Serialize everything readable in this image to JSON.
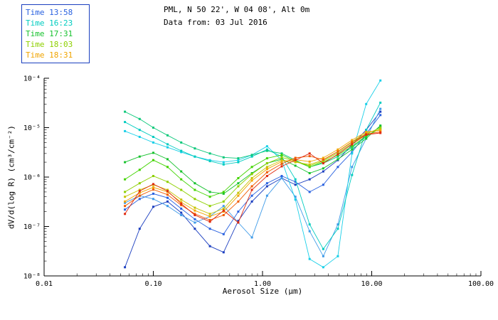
{
  "header": {
    "line1": "PML, N 50 22', W 04 08', Alt 0m",
    "line2": "Data from: 03 Jul 2016"
  },
  "legend": {
    "position": "top-left",
    "border_color": "#1a3fbf",
    "items": [
      {
        "label": "Time 13:58",
        "color": "#2a62e0"
      },
      {
        "label": "Time 16:23",
        "color": "#00ccc0"
      },
      {
        "label": "Time 17:31",
        "color": "#17c22e"
      },
      {
        "label": "Time 18:03",
        "color": "#8ed000"
      },
      {
        "label": "Time 18:31",
        "color": "#f0a400"
      }
    ]
  },
  "chart_data": {
    "type": "line",
    "title": "",
    "xlabel": "Aerosol Size (μm)",
    "ylabel": "dV/d(log R) (cm³/cm⁻²)",
    "x_scale": "log",
    "y_scale": "log",
    "grid": false,
    "xlim": [
      0.01,
      100
    ],
    "ylim": [
      1e-08,
      0.0001
    ],
    "x_ticks": [
      0.01,
      0.1,
      1,
      10,
      100
    ],
    "x_tick_labels": [
      "0.01",
      "0.10",
      "1.00",
      "10.00",
      "100.00"
    ],
    "y_ticks": [
      1e-08,
      1e-07,
      1e-06,
      1e-05,
      0.0001
    ],
    "y_tick_labels": [
      "10⁻⁸",
      "10⁻⁷",
      "10⁻⁶",
      "10⁻⁵",
      "10⁻⁴"
    ],
    "marker": "square",
    "x": [
      0.055,
      0.075,
      0.1,
      0.135,
      0.18,
      0.24,
      0.33,
      0.44,
      0.6,
      0.8,
      1.1,
      1.5,
      2.0,
      2.7,
      3.6,
      4.9,
      6.6,
      8.9,
      12.0
    ],
    "series": [
      {
        "name": "series-01",
        "color": "#1c3fc0",
        "values": [
          1.5e-08,
          9e-08,
          2.5e-07,
          3.2e-07,
          1.9e-07,
          9e-08,
          4e-08,
          3e-08,
          1.3e-07,
          3.2e-07,
          6.5e-07,
          9.5e-07,
          7e-07,
          9e-07,
          1.3e-06,
          2.2e-06,
          4.5e-06,
          9e-06,
          2.1e-05
        ]
      },
      {
        "name": "series-02",
        "color": "#2a62e0",
        "values": [
          2.2e-07,
          3.6e-07,
          4.6e-07,
          3.8e-07,
          2.3e-07,
          1.4e-07,
          9e-08,
          7e-08,
          2e-07,
          4.2e-07,
          7.5e-07,
          1.05e-06,
          8e-07,
          5e-07,
          7e-07,
          1.6e-06,
          3.2e-06,
          7.5e-06,
          1.8e-05
        ]
      },
      {
        "name": "series-03",
        "color": "#3f9be8",
        "values": [
          3e-07,
          4.2e-07,
          3.6e-07,
          2.6e-07,
          1.7e-07,
          1.2e-07,
          1.6e-07,
          2.6e-07,
          1.2e-07,
          6e-08,
          4.2e-07,
          9.5e-07,
          4e-07,
          8e-08,
          2.5e-08,
          1.1e-07,
          1.6e-06,
          6e-06,
          2.4e-05
        ]
      },
      {
        "name": "series-04",
        "color": "#18cfe8",
        "values": [
          8.5e-06,
          6.5e-06,
          5e-06,
          4e-06,
          3.2e-06,
          2.6e-06,
          2.2e-06,
          2e-06,
          2.2e-06,
          2.8e-06,
          4.2e-06,
          2.2e-06,
          3.5e-07,
          2.2e-08,
          1.5e-08,
          2.5e-08,
          3e-06,
          3e-05,
          9e-05
        ]
      },
      {
        "name": "series-05",
        "color": "#00ccc0",
        "values": [
          1.3e-05,
          9e-06,
          6.5e-06,
          4.6e-06,
          3.4e-06,
          2.6e-06,
          2.1e-06,
          1.8e-06,
          2e-06,
          2.6e-06,
          3.6e-06,
          2.6e-06,
          9e-07,
          1.1e-07,
          3.5e-08,
          9e-08,
          1.1e-06,
          9e-06,
          3.2e-05
        ]
      },
      {
        "name": "series-06",
        "color": "#0cc87a",
        "values": [
          2.1e-05,
          1.5e-05,
          1e-05,
          7e-06,
          5e-06,
          3.8e-06,
          3e-06,
          2.5e-06,
          2.4e-06,
          2.8e-06,
          3.4e-06,
          3e-06,
          2.2e-06,
          1.6e-06,
          1.9e-06,
          2.6e-06,
          4e-06,
          6.5e-06,
          1.05e-05
        ]
      },
      {
        "name": "series-07",
        "color": "#17c22e",
        "values": [
          2e-06,
          2.6e-06,
          3.1e-06,
          2.3e-06,
          1.3e-06,
          7.5e-07,
          5e-07,
          4.6e-07,
          7.5e-07,
          1.2e-06,
          1.9e-06,
          2.3e-06,
          1.7e-06,
          1.2e-06,
          1.5e-06,
          2.3e-06,
          3.6e-06,
          6e-06,
          1.1e-05
        ]
      },
      {
        "name": "series-08",
        "color": "#42d400",
        "values": [
          9e-07,
          1.4e-06,
          2.2e-06,
          1.6e-06,
          9e-07,
          5.5e-07,
          4e-07,
          5e-07,
          9.5e-07,
          1.6e-06,
          2.4e-06,
          2.8e-06,
          2.1e-06,
          1.6e-06,
          2e-06,
          2.8e-06,
          4.2e-06,
          6.8e-06,
          9.5e-06
        ]
      },
      {
        "name": "series-09",
        "color": "#8ed000",
        "values": [
          5e-07,
          7.5e-07,
          1.05e-06,
          8e-07,
          5.5e-07,
          3.6e-07,
          2.6e-07,
          3.2e-07,
          6.5e-07,
          1.15e-06,
          1.9e-06,
          2.5e-06,
          2.1e-06,
          1.7e-06,
          2.1e-06,
          3.1e-06,
          4.8e-06,
          7.4e-06,
          1e-05
        ]
      },
      {
        "name": "series-10",
        "color": "#c6c400",
        "values": [
          4e-07,
          5.5e-07,
          7e-07,
          5.5e-07,
          3.5e-07,
          2.4e-07,
          1.8e-07,
          2.3e-07,
          4.8e-07,
          9.5e-07,
          1.6e-06,
          2.2e-06,
          2e-06,
          1.8e-06,
          2.2e-06,
          3.3e-06,
          5.2e-06,
          7.8e-06,
          9.2e-06
        ]
      },
      {
        "name": "series-11",
        "color": "#f0a400",
        "values": [
          3.2e-07,
          4.8e-07,
          6.2e-07,
          5e-07,
          3.1e-07,
          2.1e-07,
          1.6e-07,
          2e-07,
          4.2e-07,
          8.5e-07,
          1.45e-06,
          2.05e-06,
          2.25e-06,
          2.05e-06,
          2.45e-06,
          3.6e-06,
          5.6e-06,
          8.2e-06,
          8.8e-06
        ]
      },
      {
        "name": "series-12",
        "color": "#f05a00",
        "values": [
          2.6e-07,
          4.2e-07,
          5.6e-07,
          4.4e-07,
          2.7e-07,
          1.8e-07,
          1.35e-07,
          1.7e-07,
          3.2e-07,
          6.5e-07,
          1.25e-06,
          1.85e-06,
          2.45e-06,
          2.65e-06,
          2.25e-06,
          3.3e-06,
          5.1e-06,
          7.4e-06,
          8.2e-06
        ]
      },
      {
        "name": "series-13",
        "color": "#e02a10",
        "values": [
          1.8e-07,
          5.2e-07,
          7.2e-07,
          5.2e-07,
          2.9e-07,
          1.7e-07,
          1.25e-07,
          2.1e-07,
          1.2e-07,
          5.5e-07,
          1.05e-06,
          1.65e-06,
          2.2e-06,
          3e-06,
          1.9e-06,
          2.9e-06,
          4.6e-06,
          7.2e-06,
          7.8e-06
        ]
      }
    ]
  }
}
